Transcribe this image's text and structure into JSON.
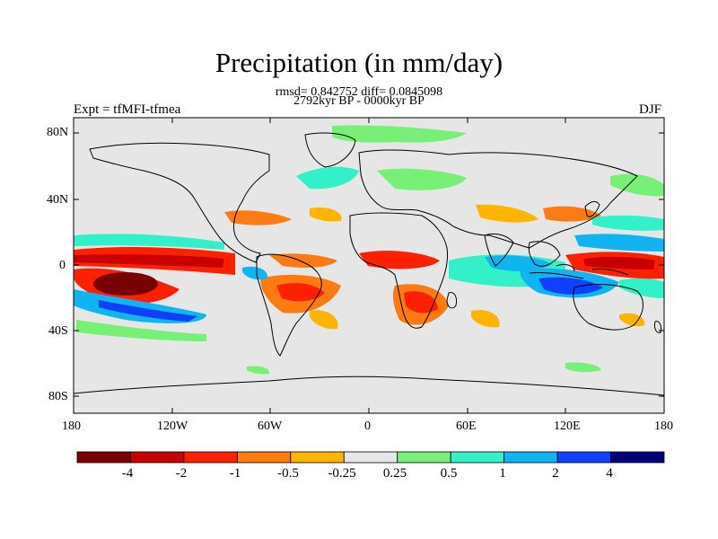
{
  "title": "Precipitation (in mm/day)",
  "stats_line": "rmsd= 0.842752  diff= 0.0845098",
  "period_line": "2792kyr BP - 0000kyr BP",
  "experiment_label": "Expt = tfMFI-tfmea",
  "season_label": "DJF",
  "lat_ticks": [
    "80N",
    "40N",
    "0",
    "40S",
    "80S"
  ],
  "lon_ticks": [
    "180",
    "120W",
    "60W",
    "0",
    "60E",
    "120E",
    "180"
  ],
  "colorbar": {
    "colors": [
      "#7a0000",
      "#c80000",
      "#ff2000",
      "#ff7a10",
      "#ffb400",
      "#e6e6e6",
      "#78f078",
      "#32f0c8",
      "#10b4f0",
      "#1040ff",
      "#000078"
    ],
    "labels": [
      "-4",
      "-2",
      "-1",
      "-0.5",
      "-0.25",
      "0.25",
      "0.5",
      "1",
      "2",
      "4"
    ]
  },
  "colors": {
    "background": "#e6e6e6",
    "coast": "#000000"
  }
}
